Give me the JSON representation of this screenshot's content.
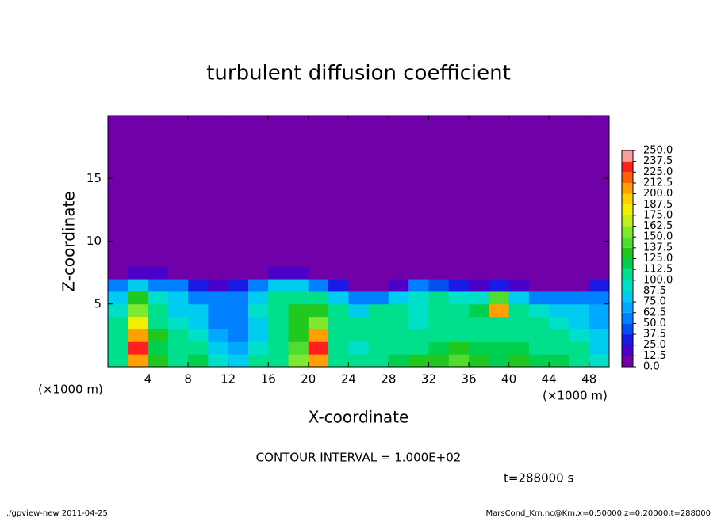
{
  "chart_data": {
    "type": "heatmap",
    "title": "turbulent diffusion coefficient",
    "x_label": "X-coordinate",
    "y_label": "Z-coordinate",
    "x_unit": "(×1000 m)",
    "y_unit": "(×1000 m)",
    "contour_note": "CONTOUR INTERVAL = 1.000E+02",
    "time_note": "t=288000 s",
    "footer_left": "./gpview-new  2011-04-25",
    "footer_right": "MarsCond_Km.nc@Km,x=0:50000,z=0:20000,t=288000",
    "xlim": [
      0,
      50
    ],
    "ylim": [
      0,
      20
    ],
    "xticks": [
      4,
      8,
      12,
      16,
      20,
      24,
      28,
      32,
      36,
      40,
      44,
      48
    ],
    "yticks": [
      5,
      10,
      15
    ],
    "x_edges": [
      0,
      2,
      4,
      6,
      8,
      10,
      12,
      14,
      16,
      18,
      20,
      22,
      24,
      26,
      28,
      30,
      32,
      34,
      36,
      38,
      40,
      42,
      44,
      46,
      48,
      50
    ],
    "y_edges": [
      0,
      1,
      2,
      3,
      4,
      5,
      6,
      7,
      8,
      9,
      20
    ],
    "values": [
      [
        100,
        200,
        125,
        110,
        120,
        90,
        75,
        100,
        110,
        150,
        200,
        110,
        100,
        110,
        120,
        130,
        130,
        140,
        130,
        120,
        130,
        120,
        120,
        110,
        90
      ],
      [
        100,
        225,
        120,
        110,
        100,
        75,
        70,
        90,
        110,
        140,
        225,
        100,
        90,
        100,
        110,
        110,
        120,
        130,
        120,
        120,
        120,
        110,
        110,
        100,
        80
      ],
      [
        110,
        212,
        125,
        100,
        90,
        70,
        60,
        80,
        110,
        130,
        212,
        110,
        100,
        110,
        100,
        100,
        110,
        110,
        110,
        110,
        110,
        100,
        100,
        90,
        75
      ],
      [
        100,
        175,
        110,
        90,
        80,
        60,
        60,
        80,
        100,
        130,
        162,
        100,
        110,
        110,
        100,
        90,
        100,
        110,
        110,
        100,
        110,
        100,
        90,
        80,
        70
      ],
      [
        90,
        150,
        100,
        80,
        75,
        60,
        60,
        90,
        110,
        130,
        130,
        100,
        80,
        100,
        100,
        90,
        100,
        100,
        120,
        212,
        100,
        90,
        80,
        75,
        70
      ],
      [
        75,
        130,
        90,
        75,
        60,
        50,
        50,
        75,
        100,
        110,
        110,
        75,
        50,
        50,
        75,
        90,
        100,
        90,
        90,
        140,
        75,
        60,
        60,
        50,
        60
      ],
      [
        50,
        75,
        60,
        50,
        25,
        20,
        25,
        50,
        75,
        75,
        60,
        25,
        0,
        0,
        12.5,
        50,
        37.5,
        25,
        20,
        25,
        12.5,
        0,
        0,
        0,
        25
      ],
      [
        0,
        12.5,
        12.5,
        0,
        0,
        0,
        0,
        0,
        12.5,
        12.5,
        0,
        0,
        0,
        0,
        0,
        0,
        0,
        0,
        0,
        0,
        0,
        0,
        0,
        0,
        0
      ],
      [
        0,
        0,
        0,
        0,
        0,
        0,
        0,
        0,
        0,
        0,
        0,
        0,
        0,
        0,
        0,
        0,
        0,
        0,
        0,
        0,
        0,
        0,
        0,
        0,
        0
      ],
      [
        0,
        0,
        0,
        0,
        0,
        0,
        0,
        0,
        0,
        0,
        0,
        0,
        0,
        0,
        0,
        0,
        0,
        0,
        0,
        0,
        0,
        0,
        0,
        0,
        0
      ]
    ],
    "levels": [
      {
        "value": 0,
        "label": "0.0"
      },
      12.5,
      {
        "value": 25,
        "label": "25.0"
      },
      37.5,
      {
        "value": 50,
        "label": "50.0"
      },
      62.5,
      {
        "value": 75,
        "label": "75.0"
      },
      87.5,
      {
        "value": 100,
        "label": "100.0"
      },
      112.5,
      {
        "value": 125,
        "label": "125.0"
      },
      137.5,
      {
        "value": 150,
        "label": "150.0"
      },
      162.5,
      {
        "value": 175,
        "label": "175.0"
      },
      187.5,
      {
        "value": 200,
        "label": "200.0"
      },
      212.5,
      {
        "value": 225,
        "label": "225.0"
      },
      237.5,
      {
        "value": 250,
        "label": "250.0"
      }
    ],
    "colors": [
      "#7000a8",
      "#4a00c8",
      "#1a1ae6",
      "#0050f0",
      "#0080ff",
      "#00a8ff",
      "#00ccf0",
      "#00e0c8",
      "#00e08c",
      "#00d050",
      "#20c820",
      "#50dc30",
      "#80e830",
      "#c0f020",
      "#f0f000",
      "#ffd000",
      "#ffa000",
      "#ff6000",
      "#ff2020",
      "#f8a0a0"
    ]
  }
}
